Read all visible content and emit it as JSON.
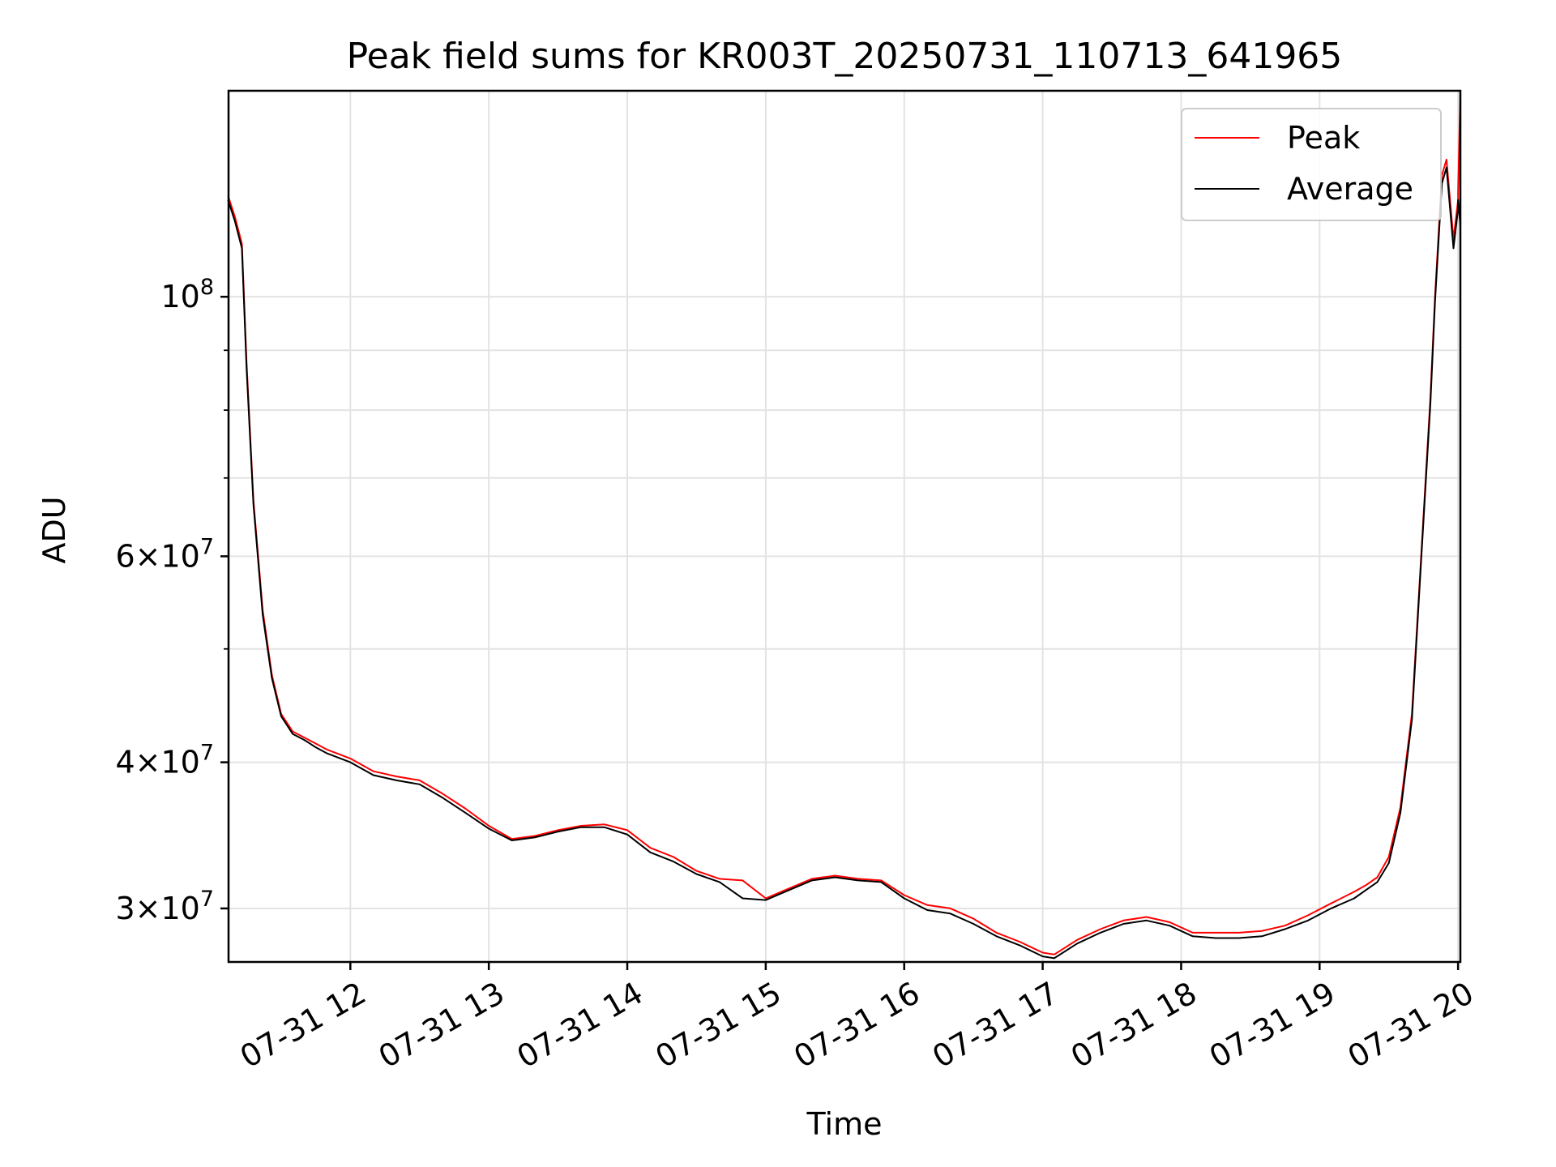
{
  "chart_data": {
    "type": "line",
    "title": "Peak field sums for KR003T_20250731_110713_641965",
    "xlabel": "Time",
    "ylabel": "ADU",
    "x_axis": {
      "kind": "time",
      "xlim": [
        "2025-07-31T11:07:13",
        "2025-07-31T20:01:00"
      ],
      "ticks": [
        "2025-07-31T12:00",
        "2025-07-31T13:00",
        "2025-07-31T14:00",
        "2025-07-31T15:00",
        "2025-07-31T16:00",
        "2025-07-31T17:00",
        "2025-07-31T18:00",
        "2025-07-31T19:00",
        "2025-07-31T20:00"
      ],
      "tick_labels": [
        "07-31 12",
        "07-31 13",
        "07-31 14",
        "07-31 15",
        "07-31 16",
        "07-31 17",
        "07-31 18",
        "07-31 19",
        "07-31 20"
      ],
      "tick_label_rotation": "30 degrees"
    },
    "y_axis": {
      "scale": "log",
      "ylim": [
        27000000,
        150000000
      ],
      "major_ticks": [
        100000000,
        60000000,
        40000000,
        30000000
      ],
      "tick_labels": [
        {
          "value": 100000000,
          "mantissa": "",
          "base": "10",
          "exp": "8"
        },
        {
          "value": 60000000,
          "mantissa": "6",
          "base": "10",
          "exp": "7"
        },
        {
          "value": 40000000,
          "mantissa": "4",
          "base": "10",
          "exp": "7"
        },
        {
          "value": 30000000,
          "mantissa": "3",
          "base": "10",
          "exp": "7"
        }
      ],
      "minor_gridlines": [
        90000000,
        80000000,
        70000000,
        50000000
      ]
    },
    "grid": true,
    "legend": {
      "location": "top-right",
      "entries": [
        "Peak",
        "Average"
      ]
    },
    "series": [
      {
        "name": "Peak",
        "color": "#ff0000",
        "x": [
          "2025-07-31T11:07",
          "2025-07-31T11:10",
          "2025-07-31T11:13",
          "2025-07-31T11:15",
          "2025-07-31T11:18",
          "2025-07-31T11:22",
          "2025-07-31T11:26",
          "2025-07-31T11:30",
          "2025-07-31T11:35",
          "2025-07-31T11:40",
          "2025-07-31T11:45",
          "2025-07-31T11:50",
          "2025-07-31T12:00",
          "2025-07-31T12:10",
          "2025-07-31T12:20",
          "2025-07-31T12:30",
          "2025-07-31T12:40",
          "2025-07-31T12:50",
          "2025-07-31T13:00",
          "2025-07-31T13:10",
          "2025-07-31T13:20",
          "2025-07-31T13:30",
          "2025-07-31T13:40",
          "2025-07-31T13:50",
          "2025-07-31T14:00",
          "2025-07-31T14:10",
          "2025-07-31T14:20",
          "2025-07-31T14:30",
          "2025-07-31T14:40",
          "2025-07-31T14:50",
          "2025-07-31T15:00",
          "2025-07-31T15:10",
          "2025-07-31T15:20",
          "2025-07-31T15:30",
          "2025-07-31T15:40",
          "2025-07-31T15:50",
          "2025-07-31T16:00",
          "2025-07-31T16:10",
          "2025-07-31T16:20",
          "2025-07-31T16:30",
          "2025-07-31T16:40",
          "2025-07-31T16:50",
          "2025-07-31T17:00",
          "2025-07-31T17:05",
          "2025-07-31T17:15",
          "2025-07-31T17:25",
          "2025-07-31T17:35",
          "2025-07-31T17:45",
          "2025-07-31T17:55",
          "2025-07-31T18:05",
          "2025-07-31T18:15",
          "2025-07-31T18:25",
          "2025-07-31T18:35",
          "2025-07-31T18:45",
          "2025-07-31T18:55",
          "2025-07-31T19:05",
          "2025-07-31T19:15",
          "2025-07-31T19:20",
          "2025-07-31T19:25",
          "2025-07-31T19:30",
          "2025-07-31T19:35",
          "2025-07-31T19:40",
          "2025-07-31T19:44",
          "2025-07-31T19:48",
          "2025-07-31T19:50",
          "2025-07-31T19:53",
          "2025-07-31T19:55",
          "2025-07-31T19:58",
          "2025-07-31T20:00",
          "2025-07-31T20:00",
          "2025-07-31T20:01"
        ],
        "y": [
          122000000,
          117000000,
          111000000,
          88000000,
          67000000,
          54000000,
          47500000,
          44000000,
          42500000,
          42000000,
          41500000,
          41000000,
          40300000,
          39300000,
          38900000,
          38600000,
          37600000,
          36500000,
          35300000,
          34400000,
          34600000,
          35000000,
          35300000,
          35400000,
          35000000,
          33800000,
          33200000,
          32300000,
          31800000,
          31700000,
          30600000,
          31200000,
          31800000,
          32000000,
          31800000,
          31700000,
          30800000,
          30200000,
          30000000,
          29400000,
          28600000,
          28100000,
          27500000,
          27400000,
          28200000,
          28800000,
          29300000,
          29500000,
          29200000,
          28600000,
          28600000,
          28600000,
          28700000,
          29000000,
          29600000,
          30300000,
          31000000,
          31400000,
          31900000,
          33200000,
          36600000,
          44000000,
          60000000,
          82000000,
          100000000,
          127000000,
          131000000,
          112000000,
          121000000,
          123000000,
          150000000
        ]
      },
      {
        "name": "Average",
        "color": "#000000",
        "x": [
          "2025-07-31T11:07",
          "2025-07-31T11:10",
          "2025-07-31T11:13",
          "2025-07-31T11:15",
          "2025-07-31T11:18",
          "2025-07-31T11:22",
          "2025-07-31T11:26",
          "2025-07-31T11:30",
          "2025-07-31T11:35",
          "2025-07-31T11:40",
          "2025-07-31T11:45",
          "2025-07-31T11:50",
          "2025-07-31T12:00",
          "2025-07-31T12:10",
          "2025-07-31T12:20",
          "2025-07-31T12:30",
          "2025-07-31T12:40",
          "2025-07-31T12:50",
          "2025-07-31T13:00",
          "2025-07-31T13:10",
          "2025-07-31T13:20",
          "2025-07-31T13:30",
          "2025-07-31T13:40",
          "2025-07-31T13:50",
          "2025-07-31T14:00",
          "2025-07-31T14:10",
          "2025-07-31T14:20",
          "2025-07-31T14:30",
          "2025-07-31T14:40",
          "2025-07-31T14:50",
          "2025-07-31T15:00",
          "2025-07-31T15:10",
          "2025-07-31T15:20",
          "2025-07-31T15:30",
          "2025-07-31T15:40",
          "2025-07-31T15:50",
          "2025-07-31T16:00",
          "2025-07-31T16:10",
          "2025-07-31T16:20",
          "2025-07-31T16:30",
          "2025-07-31T16:40",
          "2025-07-31T16:50",
          "2025-07-31T17:00",
          "2025-07-31T17:05",
          "2025-07-31T17:15",
          "2025-07-31T17:25",
          "2025-07-31T17:35",
          "2025-07-31T17:45",
          "2025-07-31T17:55",
          "2025-07-31T18:05",
          "2025-07-31T18:15",
          "2025-07-31T18:25",
          "2025-07-31T18:35",
          "2025-07-31T18:45",
          "2025-07-31T18:55",
          "2025-07-31T19:05",
          "2025-07-31T19:15",
          "2025-07-31T19:20",
          "2025-07-31T19:25",
          "2025-07-31T19:30",
          "2025-07-31T19:35",
          "2025-07-31T19:40",
          "2025-07-31T19:44",
          "2025-07-31T19:48",
          "2025-07-31T19:50",
          "2025-07-31T19:53",
          "2025-07-31T19:55",
          "2025-07-31T19:58",
          "2025-07-31T20:00",
          "2025-07-31T20:00",
          "2025-07-31T20:01"
        ],
        "y": [
          121000000,
          116000000,
          110000000,
          87000000,
          66500000,
          53500000,
          47200000,
          43800000,
          42300000,
          41800000,
          41200000,
          40700000,
          40000000,
          39000000,
          38600000,
          38300000,
          37300000,
          36200000,
          35100000,
          34300000,
          34500000,
          34900000,
          35200000,
          35200000,
          34700000,
          33500000,
          32900000,
          32100000,
          31600000,
          30600000,
          30500000,
          31100000,
          31700000,
          31900000,
          31700000,
          31600000,
          30600000,
          29900000,
          29700000,
          29100000,
          28400000,
          27900000,
          27300000,
          27200000,
          28000000,
          28600000,
          29100000,
          29300000,
          29000000,
          28400000,
          28300000,
          28300000,
          28400000,
          28800000,
          29300000,
          30000000,
          30600000,
          31100000,
          31600000,
          32800000,
          36200000,
          43500000,
          59500000,
          81000000,
          99000000,
          125000000,
          129000000,
          110000000,
          119000000,
          121000000,
          115000000
        ]
      }
    ]
  }
}
